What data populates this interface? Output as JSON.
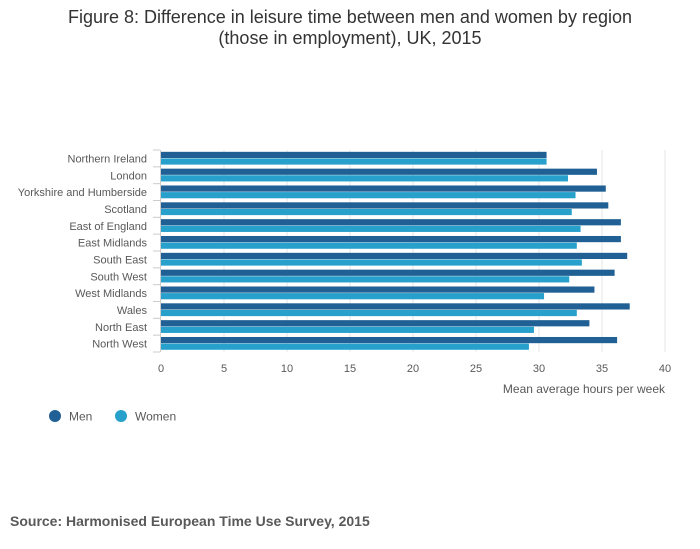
{
  "title_line1": "Figure 8: Difference in leisure time between men and women by region",
  "title_line2": "(those in employment), UK, 2015",
  "source": "Source: Harmonised European Time Use Survey, 2015",
  "colors": {
    "men": "#206095",
    "women": "#27a0cc",
    "axis": "#cccccc",
    "grid": "#e6e6e6",
    "text": "#595959"
  },
  "chart_data": {
    "type": "bar",
    "orientation": "horizontal",
    "title": "Figure 8: Difference in leisure time between men and women by region (those in employment), UK, 2015",
    "xlabel": "Mean average hours per week",
    "ylabel": "",
    "xlim": [
      0,
      40
    ],
    "xticks": [
      0,
      5,
      10,
      15,
      20,
      25,
      30,
      35,
      40
    ],
    "legend_position": "bottom-left",
    "categories": [
      "Northern Ireland",
      "London",
      "Yorkshire and Humberside",
      "Scotland",
      "East of England",
      "East Midlands",
      "South East",
      "South West",
      "West Midlands",
      "Wales",
      "North East",
      "North West"
    ],
    "series": [
      {
        "name": "Men",
        "values": [
          30.6,
          34.6,
          35.3,
          35.5,
          36.5,
          36.5,
          37.0,
          36.0,
          34.4,
          37.2,
          34.0,
          36.2
        ]
      },
      {
        "name": "Women",
        "values": [
          30.6,
          32.3,
          32.9,
          32.6,
          33.3,
          33.0,
          33.4,
          32.4,
          30.4,
          33.0,
          29.6,
          29.2
        ]
      }
    ]
  }
}
